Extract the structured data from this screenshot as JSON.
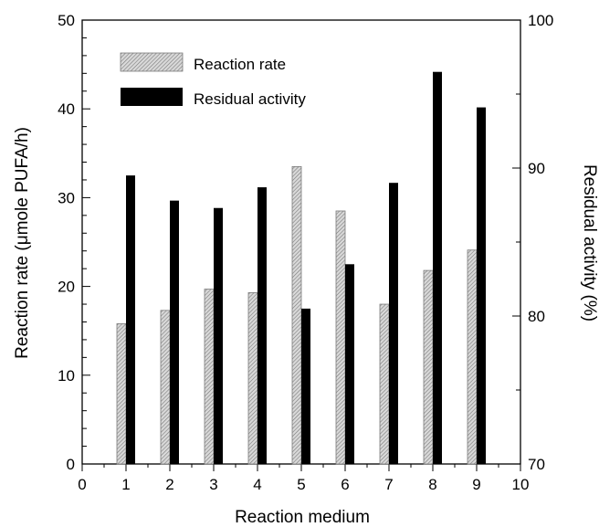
{
  "chart_data": {
    "type": "bar",
    "xlabel": "Reaction medium",
    "ylabel": "Reaction rate (μmole PUFA/h)",
    "y2label": "Residual activity (%)",
    "xlim": [
      0,
      10
    ],
    "ylim": [
      0,
      50
    ],
    "y2lim": [
      70,
      100
    ],
    "x_ticks": [
      "0",
      "1",
      "2",
      "3",
      "4",
      "5",
      "6",
      "7",
      "8",
      "9",
      "10"
    ],
    "y_ticks": [
      "0",
      "10",
      "20",
      "30",
      "40",
      "50"
    ],
    "y2_ticks": [
      "70",
      "80",
      "90",
      "100"
    ],
    "legend_position": "top-left",
    "categories": [
      1,
      2,
      3,
      4,
      5,
      6,
      7,
      8,
      9
    ],
    "series": [
      {
        "name": "Reaction rate",
        "axis": "left",
        "pattern": "hatched",
        "color": "#9a9a9a",
        "values": [
          15.8,
          17.3,
          19.7,
          19.3,
          33.5,
          28.5,
          18.0,
          21.8,
          24.1
        ]
      },
      {
        "name": "Residual activity",
        "axis": "right",
        "pattern": "solid",
        "color": "#000000",
        "values": [
          89.5,
          87.8,
          87.3,
          88.7,
          80.5,
          83.5,
          89.0,
          96.5,
          94.1
        ]
      }
    ],
    "grid": false
  }
}
